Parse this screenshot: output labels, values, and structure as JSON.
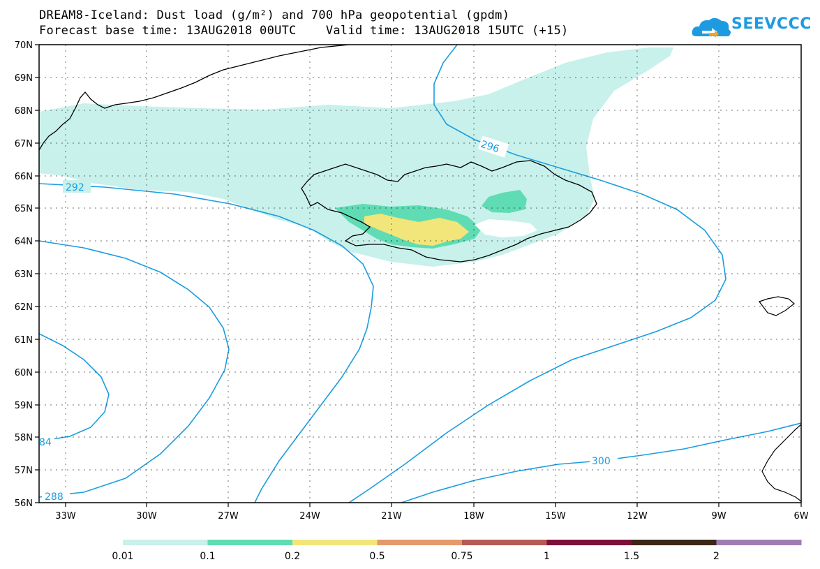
{
  "header": {
    "title_line1": "DREAM8-Iceland: Dust load (g/m²) and 700 hPa geopotential (gpdm)",
    "title_line2": "Forecast base time: 13AUG2018 00UTC    Valid time: 13AUG2018 15UTC (+15)",
    "logo_text": "SEEVCCC",
    "logo_icon": "cloud-icon",
    "logo_color": "#1e9be0"
  },
  "map": {
    "lat_labels": [
      "70N",
      "69N",
      "68N",
      "67N",
      "66N",
      "65N",
      "64N",
      "63N",
      "62N",
      "61N",
      "60N",
      "59N",
      "58N",
      "57N",
      "56N"
    ],
    "lon_labels": [
      "33W",
      "30W",
      "27W",
      "24W",
      "21W",
      "18W",
      "15W",
      "12W",
      "9W",
      "6W"
    ],
    "contour_color": "#1a9de0",
    "contour_labels": [
      "292",
      "296",
      "300",
      "288",
      "84"
    ]
  },
  "colorbar": {
    "labels": [
      "0.01",
      "0.1",
      "0.2",
      "0.5",
      "0.75",
      "1",
      "1.5",
      "2"
    ],
    "colors": [
      "#c7f1ea",
      "#5fdcb4",
      "#f2e67a",
      "#e39a6c",
      "#b55a55",
      "#7d0f3a",
      "#3c2716",
      "#a07cb4"
    ]
  }
}
